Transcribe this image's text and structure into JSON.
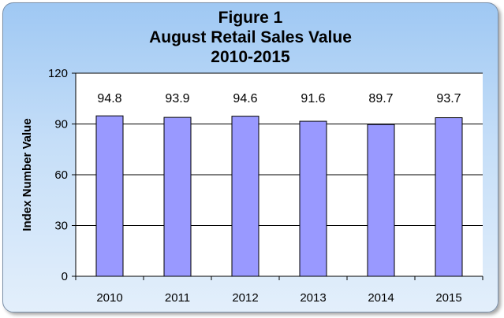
{
  "chart_data": {
    "type": "bar",
    "title_lines": [
      "Figure 1",
      "August Retail Sales Value",
      "2010-2015"
    ],
    "categories": [
      "2010",
      "2011",
      "2012",
      "2013",
      "2014",
      "2015"
    ],
    "values": [
      94.8,
      93.9,
      94.6,
      91.6,
      89.7,
      93.7
    ],
    "data_labels": [
      "94.8",
      "93.9",
      "94.6",
      "91.6",
      "89.7",
      "93.7"
    ],
    "xlabel": "",
    "ylabel": "Index Number Value",
    "ylim": [
      0,
      120
    ],
    "yticks": [
      0,
      30,
      60,
      90,
      120
    ],
    "ytick_labels": [
      "0",
      "30",
      "60",
      "90",
      "120"
    ],
    "grid": true,
    "legend": "none",
    "bar_color": "#9999ff",
    "bar_border_color": "#000000",
    "plot_background": "#ffffff"
  }
}
